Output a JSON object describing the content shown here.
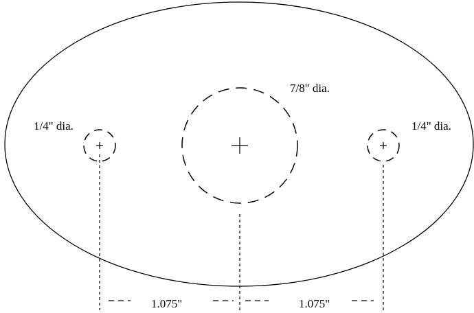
{
  "labels": {
    "left_hole": "1/4\" dia.",
    "center_hole": "7/8\" dia.",
    "right_hole": "1/4\" dia.",
    "left_spacing": "1.075\"",
    "right_spacing": "1.075\""
  },
  "colors": {
    "line": "#000000",
    "background": "#ffffff"
  }
}
